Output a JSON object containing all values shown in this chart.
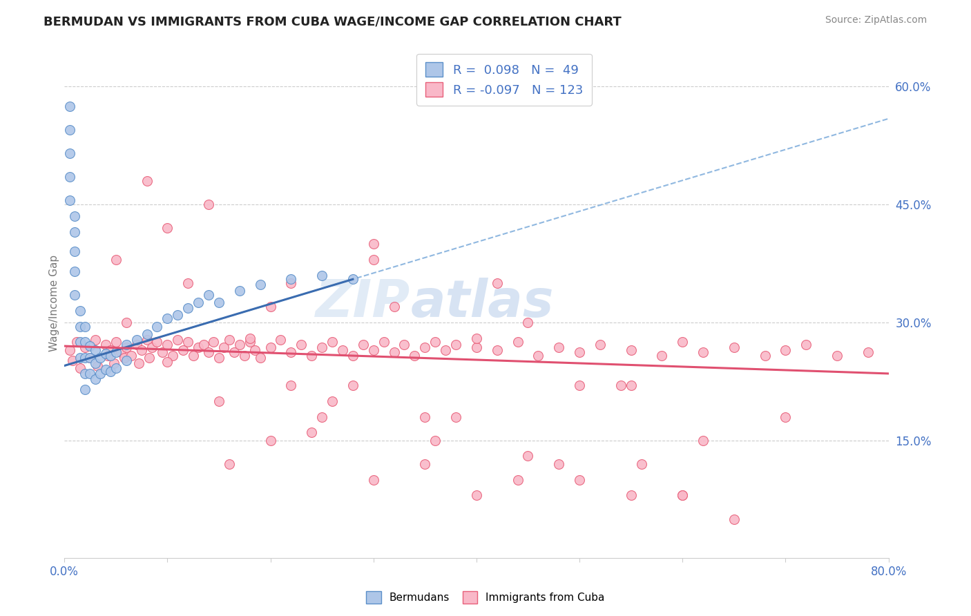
{
  "title": "BERMUDAN VS IMMIGRANTS FROM CUBA WAGE/INCOME GAP CORRELATION CHART",
  "source_text": "Source: ZipAtlas.com",
  "ylabel": "Wage/Income Gap",
  "watermark_zip": "ZIP",
  "watermark_atlas": "atlas",
  "legend_bermudans": "Bermudans",
  "legend_cuba": "Immigrants from Cuba",
  "r_blue": 0.098,
  "n_blue": 49,
  "r_pink": -0.097,
  "n_pink": 123,
  "blue_fill": "#aec6e8",
  "blue_edge": "#5b8fc9",
  "pink_fill": "#f9b8c8",
  "pink_edge": "#e8607a",
  "blue_trend_color": "#3a6cb0",
  "pink_trend_color": "#e05070",
  "dashed_color": "#90b8e0",
  "title_color": "#222222",
  "axis_label_color": "#4472c4",
  "source_color": "#888888",
  "bg_color": "#ffffff",
  "xmin": 0.0,
  "xmax": 0.8,
  "ymin": 0.0,
  "ymax": 0.65,
  "ytick_vals": [
    0.15,
    0.3,
    0.45,
    0.6
  ],
  "blue_scatter_x": [
    0.005,
    0.005,
    0.005,
    0.005,
    0.005,
    0.01,
    0.01,
    0.01,
    0.01,
    0.01,
    0.015,
    0.015,
    0.015,
    0.015,
    0.02,
    0.02,
    0.02,
    0.02,
    0.02,
    0.025,
    0.025,
    0.025,
    0.03,
    0.03,
    0.03,
    0.035,
    0.035,
    0.04,
    0.04,
    0.045,
    0.045,
    0.05,
    0.05,
    0.06,
    0.06,
    0.07,
    0.08,
    0.09,
    0.1,
    0.11,
    0.12,
    0.13,
    0.14,
    0.15,
    0.17,
    0.19,
    0.22,
    0.25,
    0.28
  ],
  "blue_scatter_y": [
    0.575,
    0.545,
    0.515,
    0.485,
    0.455,
    0.435,
    0.415,
    0.39,
    0.365,
    0.335,
    0.315,
    0.295,
    0.275,
    0.255,
    0.295,
    0.275,
    0.255,
    0.235,
    0.215,
    0.27,
    0.255,
    0.235,
    0.265,
    0.248,
    0.228,
    0.255,
    0.235,
    0.26,
    0.24,
    0.258,
    0.238,
    0.262,
    0.242,
    0.272,
    0.252,
    0.278,
    0.285,
    0.295,
    0.305,
    0.31,
    0.318,
    0.325,
    0.335,
    0.325,
    0.34,
    0.348,
    0.355,
    0.36,
    0.355
  ],
  "pink_scatter_x": [
    0.005,
    0.008,
    0.012,
    0.015,
    0.02,
    0.025,
    0.03,
    0.032,
    0.04,
    0.042,
    0.045,
    0.048,
    0.05,
    0.055,
    0.058,
    0.06,
    0.065,
    0.07,
    0.072,
    0.075,
    0.08,
    0.082,
    0.085,
    0.09,
    0.095,
    0.1,
    0.105,
    0.11,
    0.115,
    0.12,
    0.125,
    0.13,
    0.135,
    0.14,
    0.145,
    0.15,
    0.155,
    0.16,
    0.165,
    0.17,
    0.175,
    0.18,
    0.185,
    0.19,
    0.2,
    0.21,
    0.22,
    0.23,
    0.24,
    0.25,
    0.26,
    0.27,
    0.28,
    0.29,
    0.3,
    0.31,
    0.32,
    0.33,
    0.34,
    0.35,
    0.36,
    0.37,
    0.38,
    0.4,
    0.42,
    0.44,
    0.46,
    0.48,
    0.5,
    0.52,
    0.55,
    0.58,
    0.6,
    0.62,
    0.65,
    0.68,
    0.7,
    0.72,
    0.75,
    0.78,
    0.05,
    0.1,
    0.15,
    0.2,
    0.25,
    0.3,
    0.35,
    0.4,
    0.22,
    0.28,
    0.32,
    0.38,
    0.45,
    0.5,
    0.55,
    0.6,
    0.18,
    0.24,
    0.3,
    0.36,
    0.42,
    0.48,
    0.54,
    0.6,
    0.1,
    0.2,
    0.3,
    0.5,
    0.08,
    0.16,
    0.35,
    0.55,
    0.12,
    0.26,
    0.45,
    0.65,
    0.14,
    0.22,
    0.44,
    0.56,
    0.06,
    0.4,
    0.62,
    0.7
  ],
  "pink_scatter_y": [
    0.265,
    0.252,
    0.275,
    0.242,
    0.268,
    0.255,
    0.278,
    0.245,
    0.272,
    0.258,
    0.265,
    0.248,
    0.275,
    0.262,
    0.255,
    0.268,
    0.258,
    0.272,
    0.248,
    0.265,
    0.278,
    0.255,
    0.268,
    0.275,
    0.262,
    0.272,
    0.258,
    0.278,
    0.265,
    0.275,
    0.258,
    0.268,
    0.272,
    0.262,
    0.275,
    0.255,
    0.268,
    0.278,
    0.262,
    0.272,
    0.258,
    0.275,
    0.265,
    0.255,
    0.268,
    0.278,
    0.262,
    0.272,
    0.258,
    0.268,
    0.275,
    0.265,
    0.258,
    0.272,
    0.265,
    0.275,
    0.262,
    0.272,
    0.258,
    0.268,
    0.275,
    0.265,
    0.272,
    0.268,
    0.265,
    0.275,
    0.258,
    0.268,
    0.262,
    0.272,
    0.265,
    0.258,
    0.275,
    0.262,
    0.268,
    0.258,
    0.265,
    0.272,
    0.258,
    0.262,
    0.38,
    0.25,
    0.2,
    0.32,
    0.18,
    0.38,
    0.12,
    0.28,
    0.35,
    0.22,
    0.32,
    0.18,
    0.3,
    0.1,
    0.22,
    0.08,
    0.28,
    0.16,
    0.4,
    0.15,
    0.35,
    0.12,
    0.22,
    0.08,
    0.42,
    0.15,
    0.1,
    0.22,
    0.48,
    0.12,
    0.18,
    0.08,
    0.35,
    0.2,
    0.13,
    0.05,
    0.45,
    0.22,
    0.1,
    0.12,
    0.3,
    0.08,
    0.15,
    0.18
  ]
}
